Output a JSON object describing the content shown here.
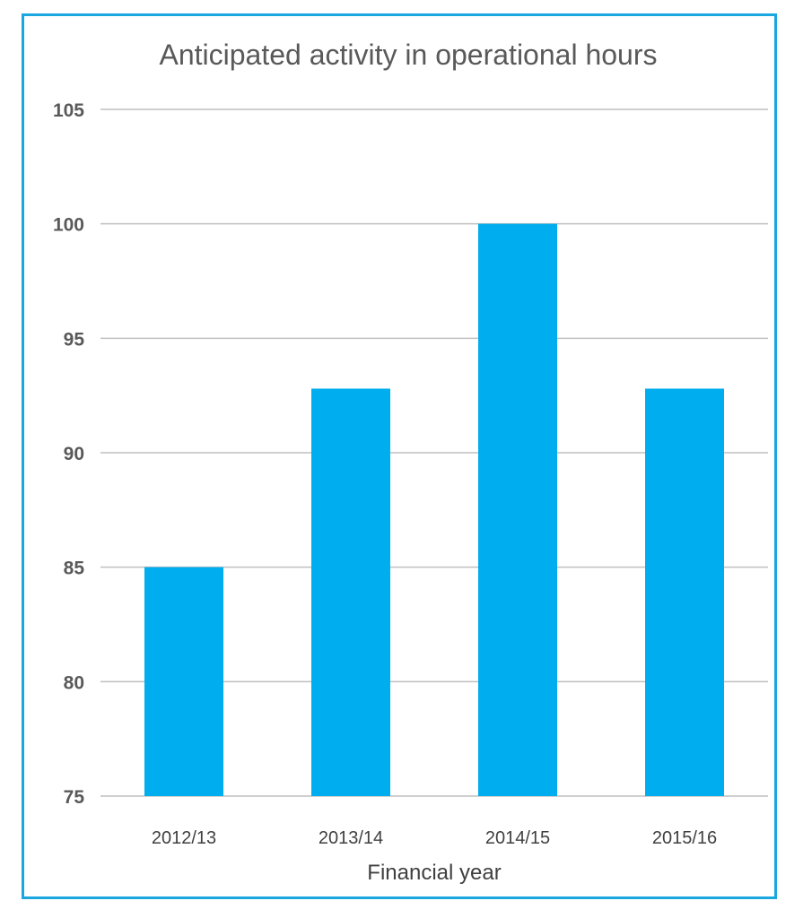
{
  "chart_data": {
    "type": "bar",
    "title": "Anticipated activity in operational hours",
    "xlabel": "Financial year",
    "ylabel": "",
    "categories": [
      "2012/13",
      "2013/14",
      "2014/15",
      "2015/16"
    ],
    "values": [
      85,
      92.8,
      100,
      92.8
    ],
    "ylim": [
      75,
      105
    ],
    "yticks": [
      "75",
      "80",
      "85",
      "90",
      "95",
      "100",
      "105"
    ],
    "grid": true,
    "legend": "none",
    "colors": {
      "bar": "#00adef",
      "frame": "#1aa7e0",
      "grid": "#bfbfbf",
      "text": "#595959"
    }
  }
}
